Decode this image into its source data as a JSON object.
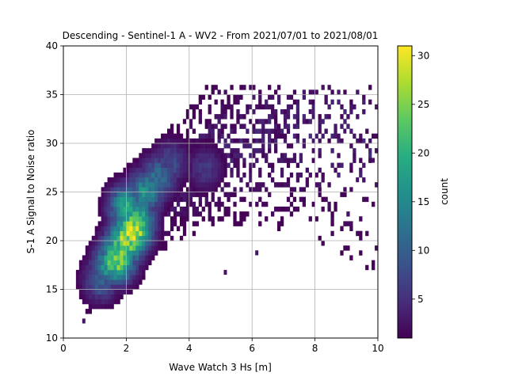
{
  "chart_data": {
    "type": "heatmap",
    "title": "Descending - Sentinel-1 A - WV2 - From 2021/07/01 to 2021/08/01",
    "xlabel": "Wave Watch 3 Hs [m]",
    "ylabel": "S-1 A Signal to Noise ratio",
    "xlim": [
      0,
      10
    ],
    "ylim": [
      10,
      40
    ],
    "xticks": [
      "0",
      "2",
      "4",
      "6",
      "8",
      "10"
    ],
    "yticks": [
      "10",
      "15",
      "20",
      "25",
      "30",
      "35",
      "40"
    ],
    "grid": true,
    "colormap": "viridis",
    "colorbar": {
      "label": "count",
      "range": [
        1,
        31
      ],
      "ticks": [
        "5",
        "10",
        "15",
        "20",
        "25",
        "30"
      ]
    },
    "bin_size": {
      "x": 0.1,
      "y": 0.5
    },
    "hotspots": [
      {
        "x": 1.2,
        "y": 16.0,
        "count": 10
      },
      {
        "x": 1.5,
        "y": 17.5,
        "count": 18
      },
      {
        "x": 1.7,
        "y": 18.0,
        "count": 25
      },
      {
        "x": 1.8,
        "y": 19.0,
        "count": 23
      },
      {
        "x": 2.0,
        "y": 20.0,
        "count": 27
      },
      {
        "x": 2.2,
        "y": 21.0,
        "count": 30
      },
      {
        "x": 2.3,
        "y": 22.0,
        "count": 24
      },
      {
        "x": 2.0,
        "y": 23.5,
        "count": 18
      },
      {
        "x": 2.6,
        "y": 25.0,
        "count": 16
      },
      {
        "x": 3.0,
        "y": 26.5,
        "count": 12
      },
      {
        "x": 3.4,
        "y": 28.0,
        "count": 8
      },
      {
        "x": 4.5,
        "y": 27.5,
        "count": 6
      }
    ],
    "outliers": [
      {
        "x": 6.4,
        "y": 33.5
      },
      {
        "x": 7.8,
        "y": 33.0
      },
      {
        "x": 8.3,
        "y": 34.5
      },
      {
        "x": 9.8,
        "y": 28.0
      },
      {
        "x": 9.3,
        "y": 26.0
      },
      {
        "x": 0.6,
        "y": 11.5
      },
      {
        "x": 8.1,
        "y": 25.5
      },
      {
        "x": 8.9,
        "y": 31.0
      },
      {
        "x": 6.1,
        "y": 18.5
      },
      {
        "x": 5.1,
        "y": 16.5
      }
    ]
  }
}
